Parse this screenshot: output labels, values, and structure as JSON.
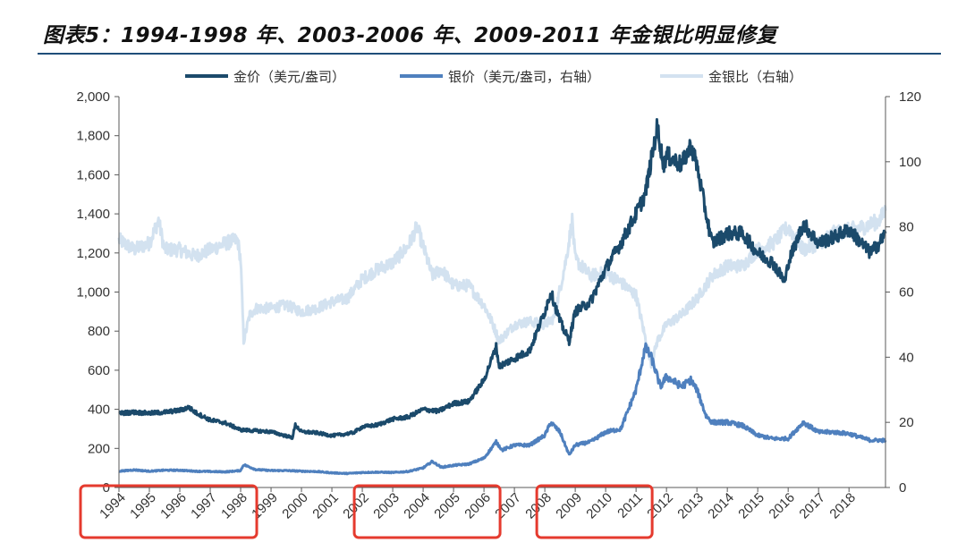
{
  "title": "图表5：1994-1998 年、2003-2006 年、2009-2011 年金银比明显修复",
  "colors": {
    "gold": "#1b4a6b",
    "silver": "#4f80be",
    "ratio": "#d3e2f0",
    "highlight_box": "#e53a2e",
    "title_rule": "#1f4e79",
    "axis": "#595959"
  },
  "chart_data": {
    "type": "line",
    "legend": {
      "placement": "top",
      "entries": [
        "金价（美元/盎司）",
        "银价（美元/盎司，右轴）",
        "金银比（右轴）"
      ]
    },
    "x_tick_labels": [
      "1994",
      "1995",
      "1996",
      "1997",
      "1998",
      "1999",
      "2000",
      "2001",
      "2002",
      "2003",
      "2004",
      "2005",
      "2006",
      "2007",
      "2008",
      "2009",
      "2010",
      "2011",
      "2012",
      "2013",
      "2014",
      "2015",
      "2016",
      "2017",
      "2018"
    ],
    "x_range": [
      1994,
      2019.2
    ],
    "y_left": {
      "range": [
        0,
        2000
      ],
      "ticks": [
        0,
        200,
        400,
        600,
        800,
        1000,
        1200,
        1400,
        1600,
        1800,
        2000
      ],
      "tick_labels": [
        "0",
        "200",
        "400",
        "600",
        "800",
        "1,000",
        "1,200",
        "1,400",
        "1,600",
        "1,800",
        "2,000"
      ]
    },
    "y_right": {
      "range": [
        0,
        120
      ],
      "ticks": [
        0,
        20,
        40,
        60,
        80,
        100,
        120
      ],
      "tick_labels": [
        "0",
        "20",
        "40",
        "60",
        "80",
        "100",
        "120"
      ]
    },
    "grid": false,
    "highlights": [
      {
        "from": "1994",
        "to": "1998"
      },
      {
        "from": "2003",
        "to": "2006"
      },
      {
        "from": "2009",
        "to": "2011"
      }
    ],
    "series": [
      {
        "name": "金价（美元/盎司）",
        "axis": "left",
        "x": [
          1994,
          1994.5,
          1995,
          1995.5,
          1996,
          1996.3,
          1996.5,
          1997,
          1997.5,
          1998,
          1998.5,
          1999,
          1999.7,
          1999.8,
          2000,
          2000.5,
          2001,
          2001.3,
          2001.7,
          2002,
          2002.5,
          2003,
          2003.5,
          2004,
          2004.5,
          2005,
          2005.5,
          2006,
          2006.4,
          2006.5,
          2007,
          2007.5,
          2008,
          2008.2,
          2008.5,
          2008.8,
          2009,
          2009.5,
          2010,
          2010.5,
          2011,
          2011.3,
          2011.7,
          2011.9,
          2012,
          2012.5,
          2012.8,
          2013,
          2013.3,
          2013.5,
          2014,
          2014.5,
          2015,
          2015.5,
          2015.9,
          2016,
          2016.5,
          2017,
          2017.5,
          2018,
          2018.7,
          2019,
          2019.2
        ],
        "values": [
          380,
          385,
          380,
          385,
          395,
          410,
          385,
          345,
          330,
          295,
          290,
          285,
          255,
          320,
          285,
          280,
          265,
          270,
          280,
          310,
          320,
          350,
          360,
          400,
          390,
          430,
          440,
          550,
          720,
          620,
          660,
          700,
          900,
          1000,
          850,
          750,
          900,
          950,
          1120,
          1250,
          1400,
          1500,
          1850,
          1650,
          1700,
          1650,
          1750,
          1650,
          1400,
          1250,
          1300,
          1300,
          1200,
          1150,
          1050,
          1150,
          1350,
          1250,
          1280,
          1320,
          1200,
          1250,
          1300
        ]
      },
      {
        "name": "银价（美元/盎司，右轴）",
        "axis": "right",
        "x": [
          1994,
          1994.5,
          1995,
          1995.5,
          1996,
          1996.5,
          1997,
          1997.5,
          1998,
          1998.1,
          1998.5,
          1999,
          1999.5,
          2000,
          2000.5,
          2001,
          2001.5,
          2002,
          2002.5,
          2003,
          2003.5,
          2004,
          2004.3,
          2004.6,
          2005,
          2005.5,
          2006,
          2006.4,
          2006.6,
          2007,
          2007.5,
          2008,
          2008.2,
          2008.5,
          2008.8,
          2009,
          2009.5,
          2010,
          2010.5,
          2011,
          2011.3,
          2011.5,
          2011.8,
          2012,
          2012.5,
          2012.8,
          2013,
          2013.3,
          2013.5,
          2014,
          2014.5,
          2015,
          2015.5,
          2016,
          2016.5,
          2017,
          2017.5,
          2018,
          2018.7,
          2019,
          2019.2
        ],
        "values": [
          5.0,
          5.4,
          5.0,
          5.3,
          5.3,
          5.0,
          4.9,
          4.8,
          5.2,
          7.0,
          5.5,
          5.2,
          5.2,
          5.0,
          4.9,
          4.5,
          4.3,
          4.6,
          4.7,
          4.6,
          4.9,
          6.0,
          8.0,
          6.2,
          6.8,
          7.2,
          9.0,
          14.0,
          11.5,
          13.0,
          13.0,
          16.0,
          20.0,
          17.0,
          10.0,
          13.0,
          14.0,
          17.0,
          18.0,
          30.0,
          43.0,
          40.0,
          31.0,
          34.0,
          31.0,
          33.0,
          30.0,
          22.0,
          20.0,
          20.0,
          19.0,
          16.0,
          15.0,
          15.0,
          20.0,
          17.0,
          17.0,
          16.5,
          14.5,
          14.5,
          14.5
        ]
      },
      {
        "name": "金银比（右轴）",
        "axis": "right",
        "x": [
          1994,
          1994.5,
          1995,
          1995.3,
          1995.5,
          1996,
          1996.5,
          1997,
          1997.5,
          1997.9,
          1998,
          1998.1,
          1998.3,
          1998.5,
          1999,
          1999.5,
          2000,
          2000.5,
          2001,
          2001.5,
          2002,
          2002.5,
          2003,
          2003.5,
          2003.8,
          2004,
          2004.3,
          2004.6,
          2005,
          2005.5,
          2006,
          2006.3,
          2006.5,
          2007,
          2007.5,
          2008,
          2008.3,
          2008.7,
          2008.9,
          2009,
          2009.5,
          2010,
          2010.5,
          2011,
          2011.3,
          2011.5,
          2011.7,
          2012,
          2012.5,
          2013,
          2013.5,
          2014,
          2014.5,
          2015,
          2015.5,
          2016,
          2016.5,
          2017,
          2017.5,
          2018,
          2018.5,
          2019,
          2019.2
        ],
        "values": [
          76,
          73,
          75,
          82,
          73,
          73,
          71,
          73,
          75,
          76,
          70,
          45,
          53,
          55,
          55,
          56,
          54,
          55,
          57,
          58,
          64,
          67,
          69,
          74,
          80,
          74,
          65,
          67,
          62,
          62,
          56,
          50,
          45,
          50,
          51,
          50,
          52,
          70,
          82,
          70,
          65,
          66,
          63,
          59,
          46,
          38,
          45,
          50,
          53,
          58,
          65,
          68,
          68,
          73,
          75,
          80,
          73,
          75,
          78,
          79,
          80,
          82,
          85
        ]
      }
    ]
  }
}
